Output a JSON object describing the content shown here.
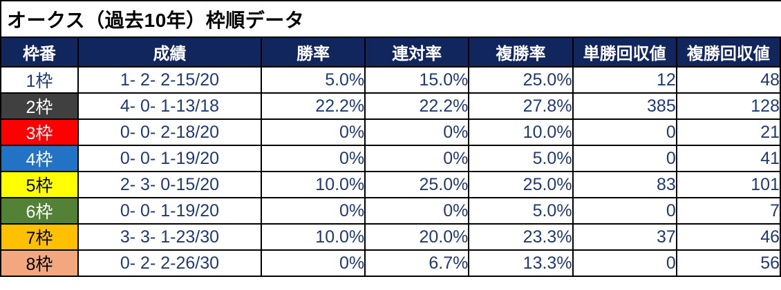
{
  "colors": {
    "header_bg": "#12265E",
    "header_text": "#FFFFFF",
    "data_text": "#1F3A73",
    "border": "#000000",
    "title_text": "#000000"
  },
  "chart_data": {
    "type": "table",
    "title": "オークス（過去10年）枠順データ",
    "columns": [
      "枠番",
      "成績",
      "勝率",
      "連対率",
      "複勝率",
      "単勝回収値",
      "複勝回収値"
    ],
    "rows": [
      [
        "1枠",
        "1- 2- 2-15/20",
        "5.0%",
        "15.0%",
        "25.0%",
        "12",
        "48"
      ],
      [
        "2枠",
        "4- 0- 1-13/18",
        "22.2%",
        "22.2%",
        "27.8%",
        "385",
        "128"
      ],
      [
        "3枠",
        "0- 0- 2-18/20",
        "0%",
        "0%",
        "10.0%",
        "0",
        "21"
      ],
      [
        "4枠",
        "0- 0- 1-19/20",
        "0%",
        "0%",
        "5.0%",
        "0",
        "41"
      ],
      [
        "5枠",
        "2- 3- 0-15/20",
        "10.0%",
        "25.0%",
        "25.0%",
        "83",
        "101"
      ],
      [
        "6枠",
        "0- 0- 1-19/20",
        "0%",
        "0%",
        "5.0%",
        "0",
        "7"
      ],
      [
        "7枠",
        "3- 3- 1-23/30",
        "10.0%",
        "20.0%",
        "23.3%",
        "37",
        "46"
      ],
      [
        "8枠",
        "0- 2- 2-26/30",
        "0%",
        "6.7%",
        "13.3%",
        "0",
        "56"
      ]
    ],
    "waku_colors": [
      {
        "bg": "#FFFFFF",
        "fg": "#1F3A73"
      },
      {
        "bg": "#404040",
        "fg": "#FFFFFF"
      },
      {
        "bg": "#FF0000",
        "fg": "#FFFFFF"
      },
      {
        "bg": "#2272C5",
        "fg": "#FFFFFF"
      },
      {
        "bg": "#FFFF00",
        "fg": "#000000"
      },
      {
        "bg": "#538135",
        "fg": "#FFFFFF"
      },
      {
        "bg": "#FFC000",
        "fg": "#000000"
      },
      {
        "bg": "#F2A77E",
        "fg": "#000000"
      }
    ]
  }
}
